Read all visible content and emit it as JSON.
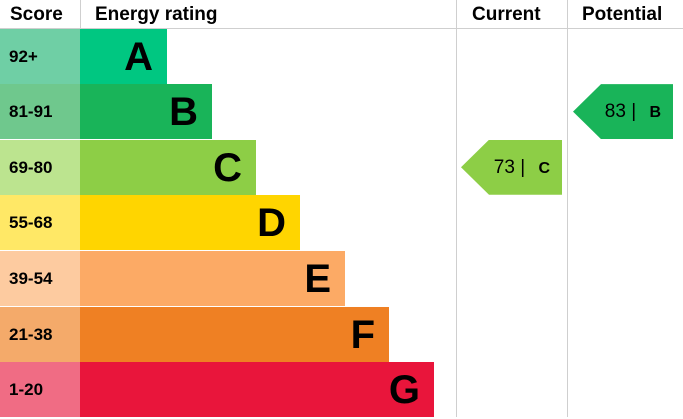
{
  "chart_data": {
    "type": "table",
    "headers": {
      "score": "Score",
      "rating": "Energy rating",
      "current": "Current",
      "potential": "Potential"
    },
    "bands": [
      {
        "score": "92+",
        "letter": "A",
        "color": "#00c781",
        "light": "#6fcfa5"
      },
      {
        "score": "81-91",
        "letter": "B",
        "color": "#19b459",
        "light": "#6fc88d"
      },
      {
        "score": "69-80",
        "letter": "C",
        "color": "#8dce46",
        "light": "#bce48f"
      },
      {
        "score": "55-68",
        "letter": "D",
        "color": "#ffd500",
        "light": "#ffe866"
      },
      {
        "score": "39-54",
        "letter": "E",
        "color": "#fcaa65",
        "light": "#fdcba0"
      },
      {
        "score": "21-38",
        "letter": "F",
        "color": "#ef8023",
        "light": "#f4aa6a"
      },
      {
        "score": "1-20",
        "letter": "G",
        "color": "#e9153b",
        "light": "#f06c84"
      }
    ],
    "current": {
      "value": "73",
      "separator": "|",
      "letter": "C",
      "color": "#8dce46"
    },
    "potential": {
      "value": "83",
      "separator": "|",
      "letter": "B",
      "color": "#19b459"
    }
  }
}
